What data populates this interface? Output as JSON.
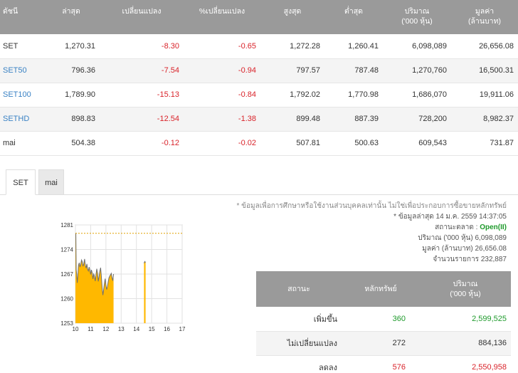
{
  "index_table": {
    "headers": {
      "name": "ดัชนี",
      "last": "ล่าสุด",
      "change": "เปลี่ยนแปลง",
      "pct_change": "%เปลี่ยนแปลง",
      "high": "สูงสุด",
      "low": "ต่ำสุด",
      "volume_l1": "ปริมาณ",
      "volume_l2": "('000 หุ้น)",
      "value_l1": "มูลค่า",
      "value_l2": "(ล้านบาท)"
    },
    "rows": [
      {
        "name": "SET",
        "last": "1,270.31",
        "change": "-8.30",
        "pct": "-0.65",
        "high": "1,272.28",
        "low": "1,260.41",
        "volume": "6,098,089",
        "value": "26,656.08"
      },
      {
        "name": "SET50",
        "last": "796.36",
        "change": "-7.54",
        "pct": "-0.94",
        "high": "797.57",
        "low": "787.48",
        "volume": "1,270,760",
        "value": "16,500.31"
      },
      {
        "name": "SET100",
        "last": "1,789.90",
        "change": "-15.13",
        "pct": "-0.84",
        "high": "1,792.02",
        "low": "1,770.98",
        "volume": "1,686,070",
        "value": "19,911.06"
      },
      {
        "name": "SETHD",
        "last": "898.83",
        "change": "-12.54",
        "pct": "-1.38",
        "high": "899.48",
        "low": "887.39",
        "volume": "728,200",
        "value": "8,982.37"
      },
      {
        "name": "mai",
        "last": "504.38",
        "change": "-0.12",
        "pct": "-0.02",
        "high": "507.81",
        "low": "500.63",
        "volume": "609,543",
        "value": "731.87"
      }
    ]
  },
  "tabs": [
    {
      "label": "SET"
    },
    {
      "label": "mai"
    }
  ],
  "info": {
    "note": "* ข้อมูลเพื่อการศึกษาหรือใช้งานส่วนบุคคลเท่านั้น ไม่ใช่เพื่อประกอบการซื้อขายหลักทรัพย์",
    "updated": "* ข้อมูลล่าสุด 14 ม.ค. 2559 14:37:05",
    "market_status_label": "สถานะตลาด :",
    "market_status_value": "Open(II)",
    "volume_label": "ปริมาณ ('000 หุ้น)",
    "volume_value": "6,098,089",
    "value_label": "มูลค่า (ล้านบาท)",
    "value_value": "26,656.08",
    "trades_label": "จำนวนรายการ",
    "trades_value": "232,887"
  },
  "status_table": {
    "headers": {
      "status": "สถานะ",
      "securities": "หลักทรัพย์",
      "volume_l1": "ปริมาณ",
      "volume_l2": "('000 หุ้น)"
    },
    "rows": [
      {
        "status": "เพิ่มขึ้น",
        "count": "360",
        "volume": "2,599,525"
      },
      {
        "status": "ไม่เปลี่ยนแปลง",
        "count": "272",
        "volume": "884,136"
      },
      {
        "status": "ลดลง",
        "count": "576",
        "volume": "2,550,958"
      }
    ]
  },
  "chart_data": {
    "type": "area",
    "ylim": [
      1253,
      1281
    ],
    "yticks": [
      "1281",
      "1274",
      "1267",
      "1260",
      "1253"
    ],
    "xticks": [
      "10",
      "11",
      "12",
      "13",
      "14",
      "15",
      "16",
      "17"
    ],
    "reference_line": 1278.61,
    "x": [
      10.0,
      10.03,
      10.05,
      10.08,
      10.12,
      10.15,
      10.2,
      10.25,
      10.3,
      10.35,
      10.4,
      10.45,
      10.5,
      10.55,
      10.6,
      10.65,
      10.7,
      10.75,
      10.8,
      10.85,
      10.9,
      10.95,
      11.0,
      11.05,
      11.1,
      11.15,
      11.2,
      11.25,
      11.3,
      11.35,
      11.4,
      11.45,
      11.5,
      11.55,
      11.6,
      11.65,
      11.7,
      11.75,
      11.8,
      11.85,
      11.9,
      11.95,
      12.0,
      12.05,
      12.1,
      12.15,
      12.2,
      12.25,
      12.3,
      12.35,
      12.4,
      12.45,
      12.5,
      14.5,
      14.55,
      14.6
    ],
    "y": [
      1278.6,
      1278.6,
      1268.2,
      1267.0,
      1264.5,
      1266.0,
      1269.5,
      1270.2,
      1269.0,
      1269.8,
      1271.0,
      1270.5,
      1269.2,
      1270.0,
      1271.3,
      1269.5,
      1268.7,
      1269.9,
      1268.4,
      1267.9,
      1269.0,
      1268.1,
      1266.9,
      1268.2,
      1267.3,
      1265.6,
      1267.0,
      1266.4,
      1265.0,
      1266.8,
      1268.5,
      1267.2,
      1264.9,
      1266.3,
      1267.8,
      1268.8,
      1266.5,
      1263.2,
      1261.0,
      1262.5,
      1264.3,
      1265.7,
      1263.8,
      1262.6,
      1263.4,
      1264.8,
      1265.9,
      1266.4,
      1266.8,
      1267.2,
      1266.0,
      1265.1,
      1267.0,
      1270.1,
      1270.6,
      1270.3
    ]
  }
}
